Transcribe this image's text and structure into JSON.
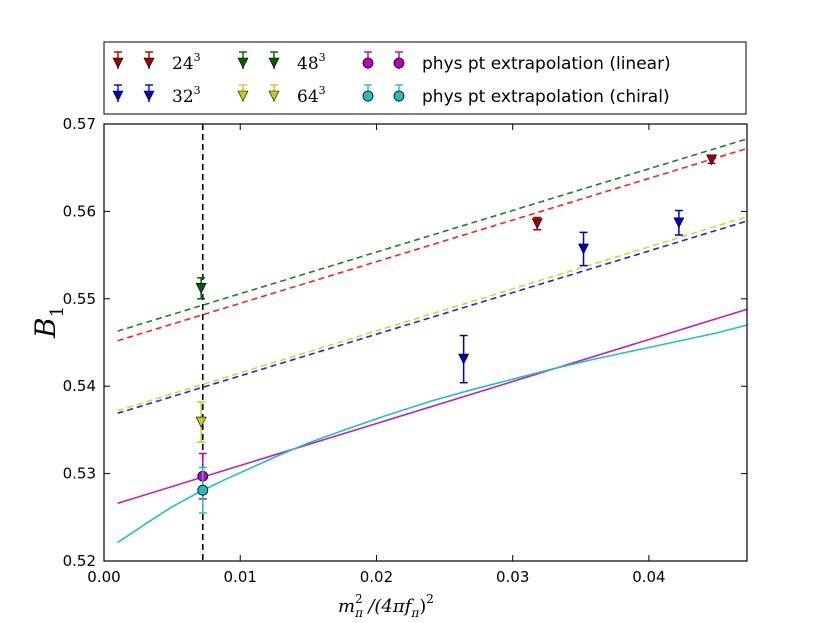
{
  "chart_data": {
    "type": "scatter",
    "title": "",
    "xlabel": {
      "m": "m",
      "sub": "π",
      "sup": "2",
      "mid": " /(4πf",
      "sub2": "π",
      "end": ")",
      "sup2": "2"
    },
    "ylabel": {
      "main": "B",
      "sub": "1"
    },
    "xlim": [
      0.0,
      0.0472
    ],
    "ylim": [
      0.52,
      0.57
    ],
    "xticks": [
      0.0,
      0.01,
      0.02,
      0.03,
      0.04
    ],
    "xtick_labels": [
      "0.00",
      "0.01",
      "0.02",
      "0.03",
      "0.04"
    ],
    "yticks": [
      0.52,
      0.53,
      0.54,
      0.55,
      0.56,
      0.57
    ],
    "ytick_labels": [
      "0.52",
      "0.53",
      "0.54",
      "0.55",
      "0.56",
      "0.57"
    ],
    "physical_point_x": 0.00725,
    "series": [
      {
        "name": "24³",
        "label_base": "24",
        "label_sup": "3",
        "color": "#a00000",
        "marker": "triangle-down",
        "points": [
          {
            "x": 0.0318,
            "y": 0.5586,
            "err": 0.0007
          },
          {
            "x": 0.0446,
            "y": 0.5659,
            "err": 0.0004
          }
        ],
        "fit_line": {
          "color": "#ff2020",
          "x": [
            0.001,
            0.0472
          ],
          "y": [
            0.5452,
            0.5672
          ]
        }
      },
      {
        "name": "32³",
        "label_base": "32",
        "label_sup": "3",
        "color": "#0000c0",
        "marker": "triangle-down",
        "points": [
          {
            "x": 0.0264,
            "y": 0.5431,
            "err": 0.0027
          },
          {
            "x": 0.0352,
            "y": 0.5557,
            "err": 0.0019
          },
          {
            "x": 0.0422,
            "y": 0.5587,
            "err": 0.0014
          }
        ],
        "fit_line": {
          "color": "#2020ff",
          "x": [
            0.001,
            0.0472
          ],
          "y": [
            0.5369,
            0.5589
          ]
        }
      },
      {
        "name": "48³",
        "label_base": "48",
        "label_sup": "3",
        "color": "#006000",
        "marker": "triangle-down",
        "points": [
          {
            "x": 0.00713,
            "y": 0.5512,
            "err": 0.0012
          }
        ],
        "fit_line": {
          "color": "#208020",
          "x": [
            0.001,
            0.0472
          ],
          "y": [
            0.5463,
            0.5683
          ]
        }
      },
      {
        "name": "64³",
        "label_base": "64",
        "label_sup": "3",
        "color": "#c8c820",
        "marker": "triangle-down",
        "points": [
          {
            "x": 0.00713,
            "y": 0.5359,
            "err": 0.0023
          }
        ],
        "fit_line": {
          "color": "#d8d820",
          "x": [
            0.001,
            0.0472
          ],
          "y": [
            0.5372,
            0.5594
          ]
        }
      },
      {
        "name": "phys pt extrapolation (linear)",
        "color": "#c000c0",
        "marker": "circle",
        "points": [
          {
            "x": 0.00725,
            "y": 0.5297,
            "err": 0.0026
          }
        ],
        "curve": {
          "color": "#c020c0",
          "type": "linear",
          "x": [
            0.001,
            0.0472
          ],
          "y": [
            0.5266,
            0.5488
          ]
        }
      },
      {
        "name": "phys pt extrapolation (chiral)",
        "color": "#20c0c0",
        "marker": "circle",
        "points": [
          {
            "x": 0.00725,
            "y": 0.5281,
            "err": 0.0026
          }
        ],
        "curve": {
          "color": "#20c0c8",
          "type": "chiral",
          "x": [
            0.001,
            0.003,
            0.005,
            0.007,
            0.009,
            0.011,
            0.013,
            0.015,
            0.018,
            0.021,
            0.024,
            0.027,
            0.03,
            0.033,
            0.036,
            0.039,
            0.042,
            0.045,
            0.0472
          ],
          "y": [
            0.5221,
            0.5242,
            0.5262,
            0.5279,
            0.5294,
            0.5308,
            0.5322,
            0.5335,
            0.5352,
            0.5368,
            0.5383,
            0.5396,
            0.5408,
            0.542,
            0.5431,
            0.5441,
            0.5451,
            0.5461,
            0.547
          ]
        }
      }
    ],
    "legend": {
      "placement": "top",
      "entries": [
        "24³",
        "32³",
        "48³",
        "64³",
        "phys pt extrapolation (linear)",
        "phys pt extrapolation (chiral)"
      ]
    }
  }
}
